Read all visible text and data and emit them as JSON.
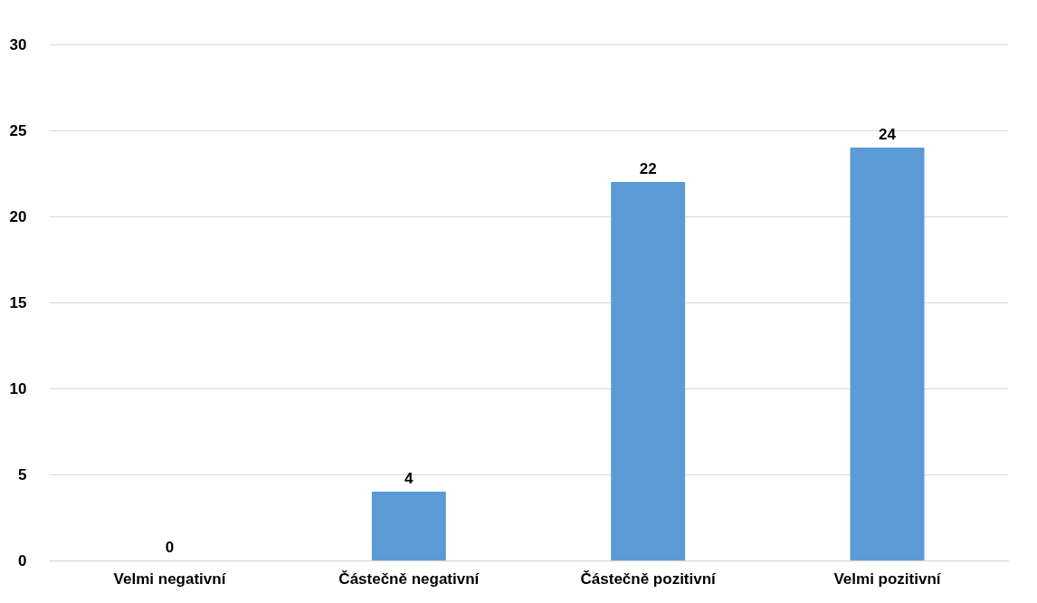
{
  "chart_data": {
    "type": "bar",
    "categories": [
      "Velmi negativní",
      "Částečně negativní",
      "Částečně pozitivní",
      "Velmi pozitivní"
    ],
    "values": [
      0,
      4,
      22,
      24
    ],
    "color": "#5b9bd5",
    "ylim": [
      0,
      30
    ],
    "yticks": [
      0,
      5,
      10,
      15,
      20,
      25,
      30
    ],
    "grid": "y",
    "data_labels": true
  }
}
